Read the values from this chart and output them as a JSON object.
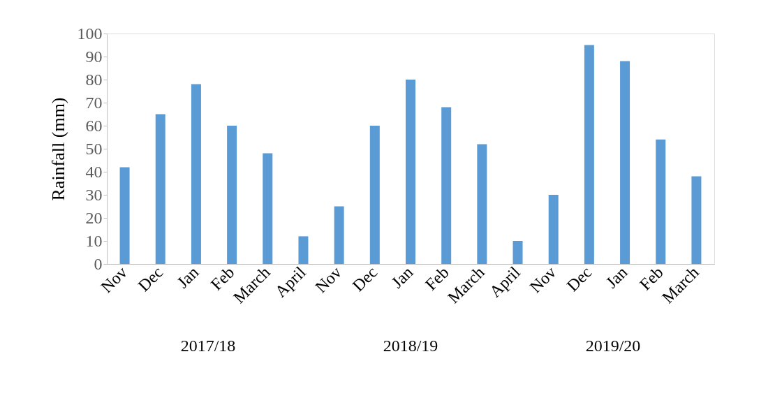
{
  "chart_data": {
    "type": "bar",
    "ylabel": "Rainfall (mm)",
    "categories": [
      "Nov",
      "Dec",
      "Jan",
      "Feb",
      "March",
      "April",
      "Nov",
      "Dec",
      "Jan",
      "Feb",
      "March",
      "April",
      "Nov",
      "Dec",
      "Jan",
      "Feb",
      "March"
    ],
    "values": [
      42,
      65,
      78,
      60,
      48,
      12,
      25,
      60,
      80,
      68,
      52,
      10,
      30,
      95,
      88,
      54,
      38
    ],
    "color": "#5b9bd5",
    "ylim": [
      0,
      100
    ],
    "yticks": [
      0,
      10,
      20,
      30,
      40,
      50,
      60,
      70,
      80,
      90,
      100
    ],
    "grid": false,
    "annotations": [
      "2017/18",
      "2018/19",
      "2019/20"
    ]
  }
}
